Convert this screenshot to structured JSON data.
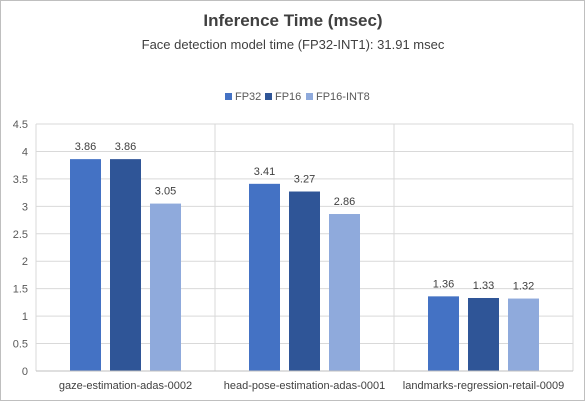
{
  "chart_data": {
    "type": "bar",
    "title": "Inference Time (msec)",
    "subtitle": "Face detection model time (FP32-INT1): 31.91 msec",
    "categories": [
      "gaze-estimation-adas-0002",
      "head-pose-estimation-adas-0001",
      "landmarks-regression-retail-0009"
    ],
    "series": [
      {
        "name": "FP32",
        "values": [
          3.86,
          3.41,
          1.36
        ],
        "color": "#4472c4"
      },
      {
        "name": "FP16",
        "values": [
          3.86,
          3.27,
          1.33
        ],
        "color": "#2f5597"
      },
      {
        "name": "FP16-INT8",
        "values": [
          3.05,
          2.86,
          1.32
        ],
        "color": "#8faadc"
      }
    ],
    "yticks": [
      "0",
      "0.5",
      "1",
      "1.5",
      "2",
      "2.5",
      "3",
      "3.5",
      "4",
      "4.5"
    ],
    "ylim": [
      0,
      4.5
    ],
    "grid": true,
    "legend_position": "top-center",
    "xlabel": "",
    "ylabel": ""
  }
}
